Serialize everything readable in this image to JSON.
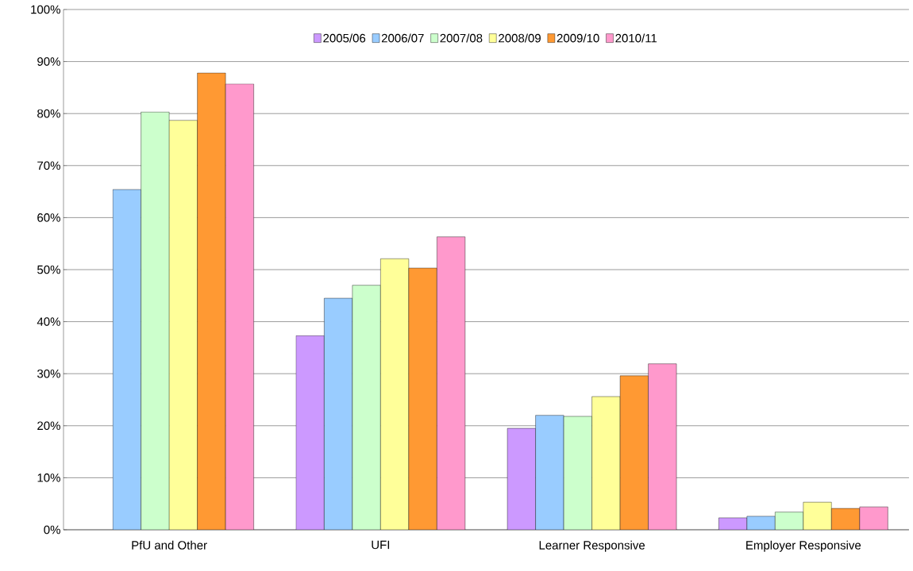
{
  "chart_data": {
    "type": "bar",
    "categories": [
      "PfU and Other",
      "UFI",
      "Learner Responsive",
      "Employer Responsive"
    ],
    "series": [
      {
        "name": "2005/06",
        "color": "#cc99ff",
        "values": [
          null,
          37.3,
          19.5,
          2.3
        ]
      },
      {
        "name": "2006/07",
        "color": "#99ccff",
        "values": [
          65.4,
          44.5,
          22.0,
          2.6
        ]
      },
      {
        "name": "2007/08",
        "color": "#ccffcc",
        "values": [
          80.3,
          47.0,
          21.8,
          3.4
        ]
      },
      {
        "name": "2008/09",
        "color": "#ffff99",
        "values": [
          78.7,
          52.1,
          25.6,
          5.3
        ]
      },
      {
        "name": "2009/10",
        "color": "#ff9933",
        "values": [
          87.8,
          50.3,
          29.6,
          4.1
        ]
      },
      {
        "name": "2010/11",
        "color": "#ff99cc",
        "values": [
          85.7,
          56.3,
          31.9,
          4.4
        ]
      }
    ],
    "ylim": [
      0,
      100
    ],
    "yticks": [
      {
        "value": 0,
        "label": "0%"
      },
      {
        "value": 10,
        "label": "10%"
      },
      {
        "value": 20,
        "label": "20%"
      },
      {
        "value": 30,
        "label": "30%"
      },
      {
        "value": 40,
        "label": "40%"
      },
      {
        "value": 50,
        "label": "50%"
      },
      {
        "value": 60,
        "label": "60%"
      },
      {
        "value": 70,
        "label": "70%"
      },
      {
        "value": 80,
        "label": "80%"
      },
      {
        "value": 90,
        "label": "90%"
      },
      {
        "value": 100,
        "label": "100%"
      }
    ],
    "grid": "y",
    "legend": "top"
  }
}
